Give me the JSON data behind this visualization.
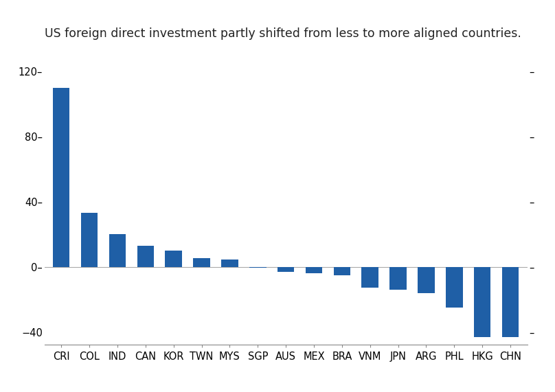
{
  "title": "US foreign direct investment partly shifted from less to more aligned countries.",
  "categories": [
    "CRI",
    "COL",
    "IND",
    "CAN",
    "KOR",
    "TWN",
    "MYS",
    "SGP",
    "AUS",
    "MEX",
    "BRA",
    "VNM",
    "JPN",
    "ARG",
    "PHL",
    "HKG",
    "CHN"
  ],
  "values": [
    110,
    33,
    20,
    13,
    10,
    5.5,
    4.5,
    -0.5,
    -3,
    -4,
    -5,
    -13,
    -14,
    -16,
    -25,
    -43,
    -43
  ],
  "bar_color": "#1f5fa6",
  "ylim": [
    -48,
    135
  ],
  "yticks": [
    -40,
    0,
    40,
    80,
    120
  ],
  "background_color": "#ffffff",
  "title_fontsize": 12.5,
  "tick_fontsize": 10.5
}
